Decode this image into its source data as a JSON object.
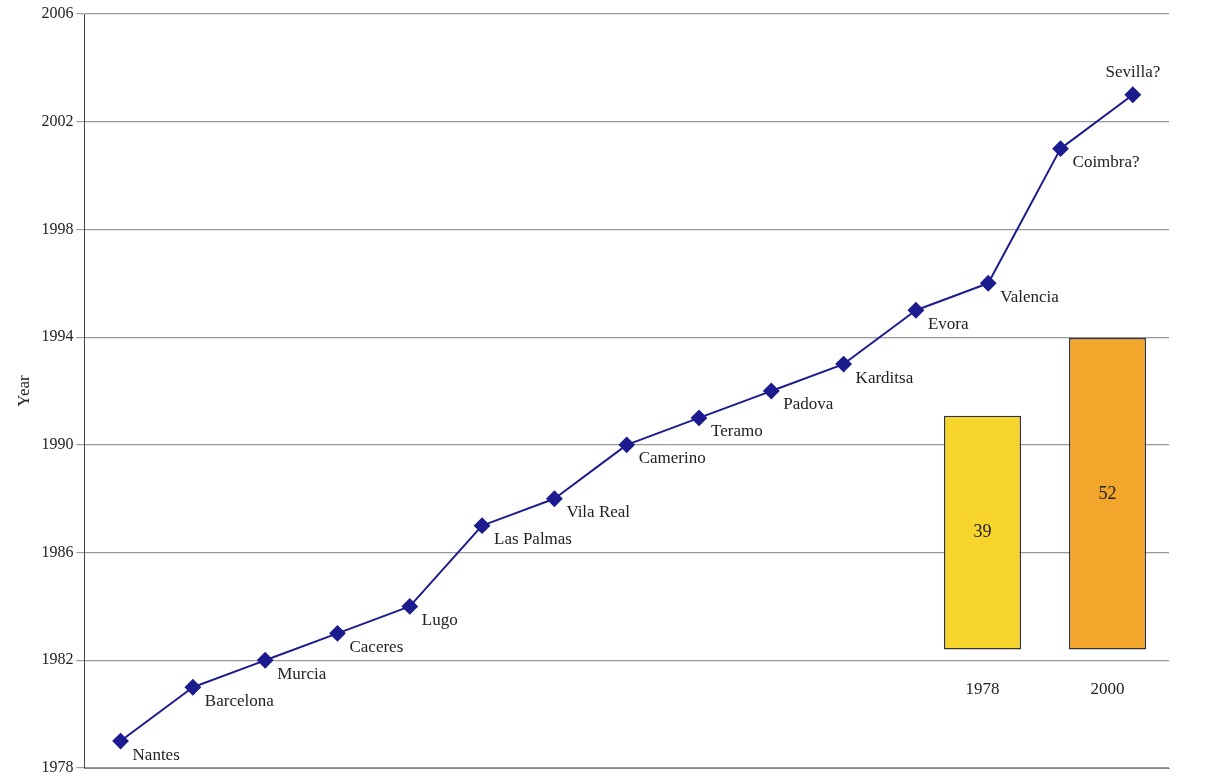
{
  "chart_data": [
    {
      "type": "line",
      "ylabel": "Year",
      "categories": [
        null,
        null,
        null,
        null,
        null,
        null,
        null,
        null,
        null,
        null,
        null,
        null,
        null,
        null,
        null
      ],
      "series": [
        {
          "color": "#1c1c8f",
          "values": [
            1979,
            1981,
            1982,
            1983,
            1984,
            1987,
            1988,
            1990,
            1991,
            1992,
            1993,
            1995,
            1996,
            2001,
            2003
          ]
        }
      ],
      "annotations": [
        "Nantes",
        "Barcelona",
        "Murcia",
        "Caceres",
        "Lugo",
        "Las Palmas",
        "Vila Real",
        "Camerino",
        "Teramo",
        "Padova",
        "Karditsa",
        "Evora",
        "Valencia",
        "Coimbra?",
        "Sevilla?"
      ],
      "ylim": [
        1978,
        2006
      ],
      "yticks": [
        1978,
        1982,
        1986,
        1990,
        1994,
        1998,
        2002,
        2006
      ],
      "grid": "y",
      "marker": "diamond",
      "tick_labels": "y",
      "legend": false
    },
    {
      "type": "bar",
      "categories": [
        "1978",
        "2000"
      ],
      "values": [
        39,
        52
      ],
      "colors": [
        "#f7d52c",
        "#f2a62b"
      ],
      "data_labels": true,
      "relative": false
    }
  ]
}
